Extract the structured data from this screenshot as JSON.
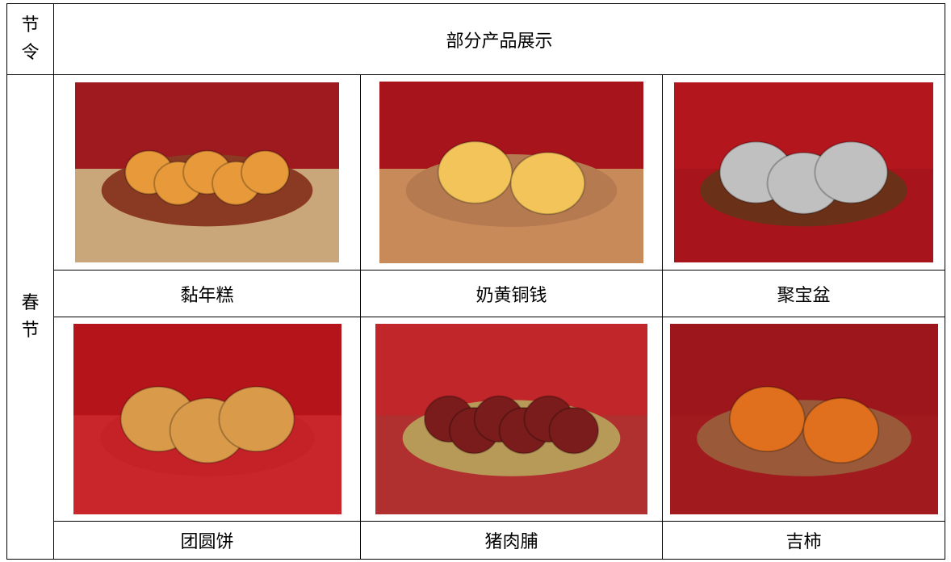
{
  "table": {
    "header": {
      "season": "节令",
      "title": "部分产品展示"
    },
    "rows": [
      {
        "season": "春节",
        "products": [
          [
            "黏年糕",
            "奶黄铜钱",
            "聚宝盆"
          ],
          [
            "团圆饼",
            "猪肉脯",
            "吉柿"
          ]
        ]
      }
    ]
  }
}
